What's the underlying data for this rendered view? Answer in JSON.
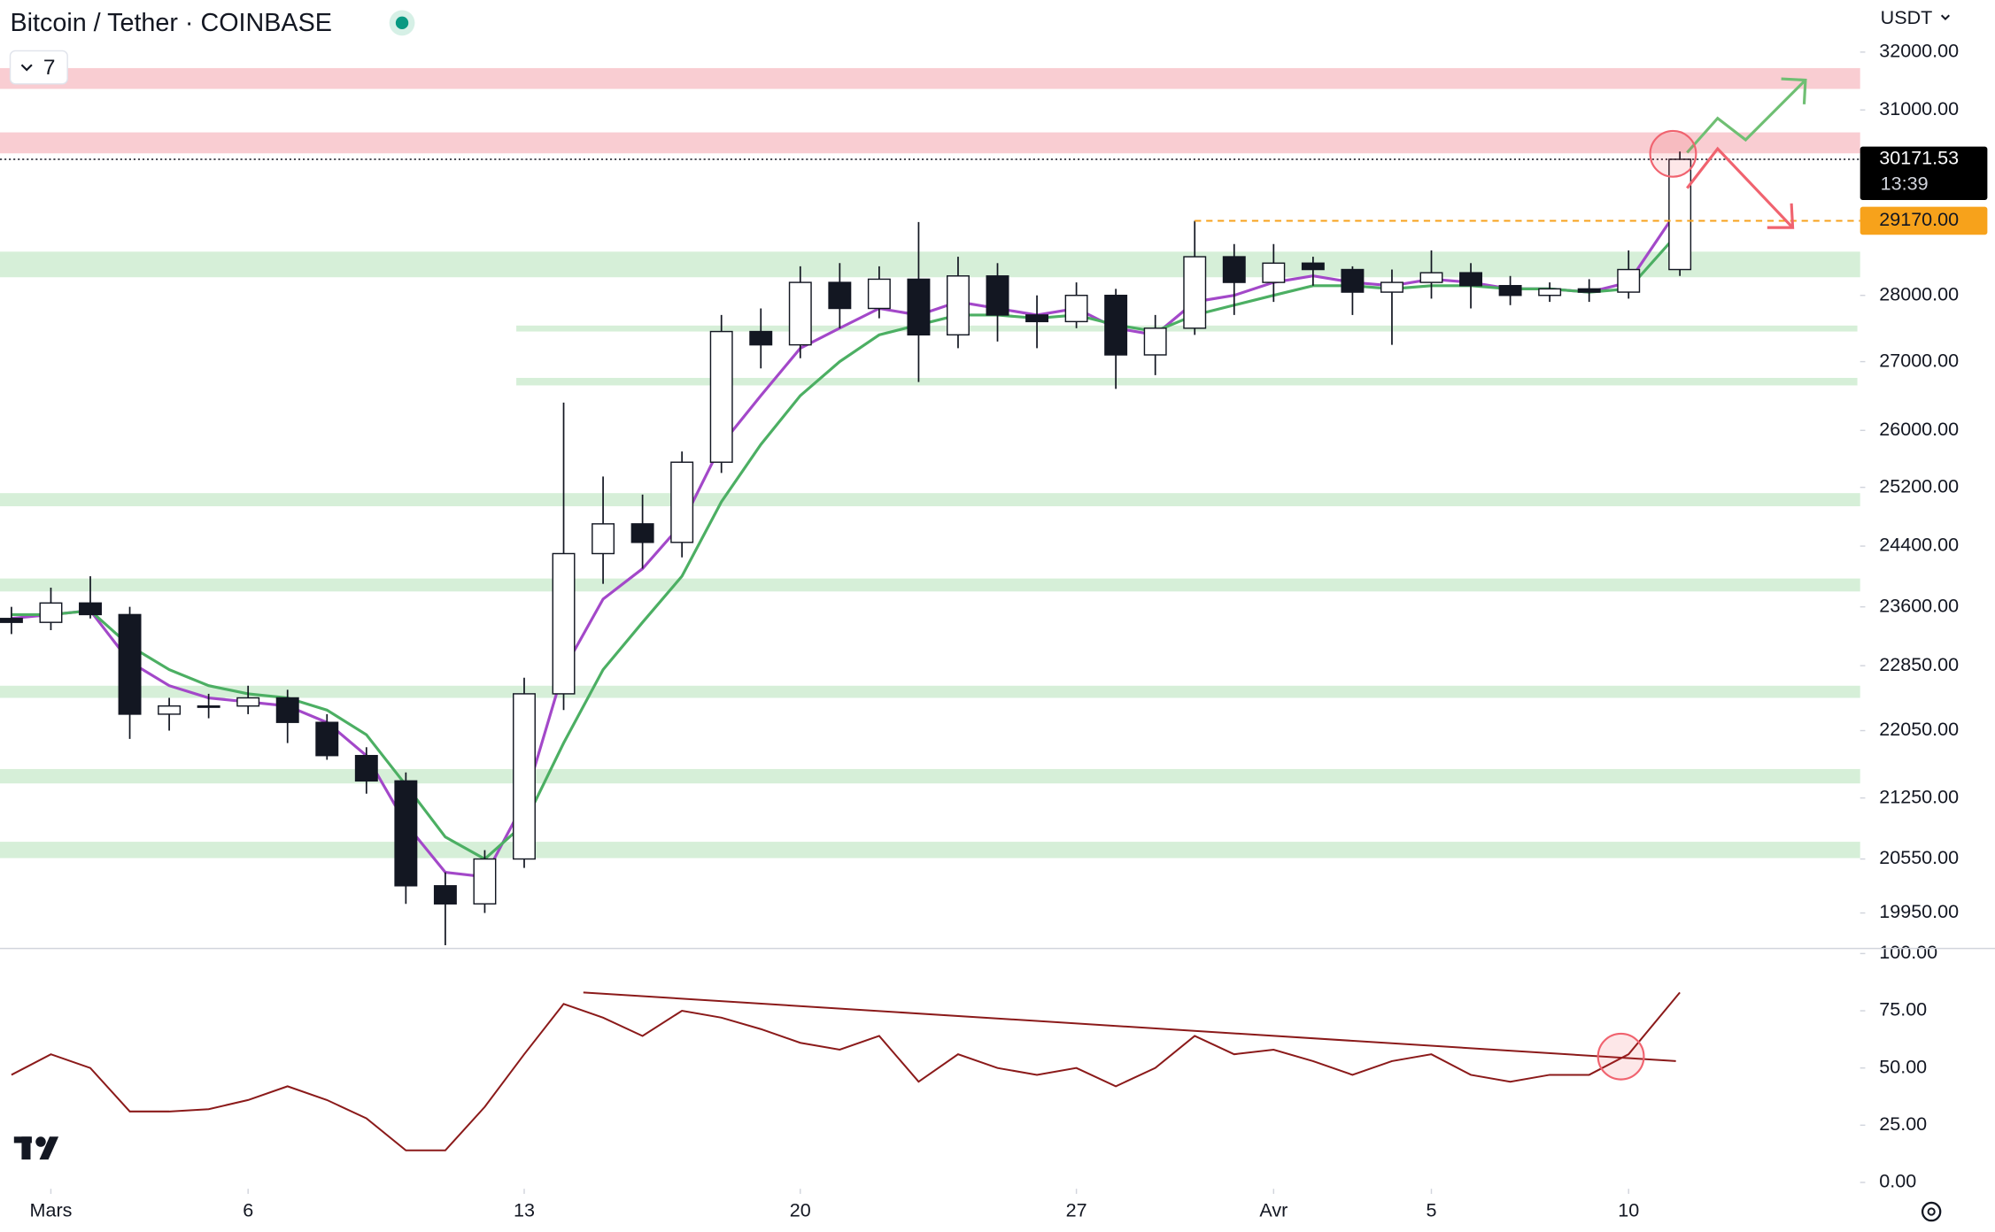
{
  "chart_data": {
    "type": "candlestick",
    "title": "Bitcoin / Tether · COINBASE",
    "badge": "7",
    "currency": "USDT",
    "candle_color": "#131722",
    "log_scale": true,
    "xlim": [
      -1.29,
      45.87
    ],
    "xticks": [
      {
        "value": 0,
        "label": "Mars"
      },
      {
        "value": 5,
        "label": "6"
      },
      {
        "value": 12,
        "label": "13"
      },
      {
        "value": 19,
        "label": "20"
      },
      {
        "value": 26,
        "label": "27"
      },
      {
        "value": 31,
        "label": "Avr"
      },
      {
        "value": 35,
        "label": "5"
      },
      {
        "value": 40,
        "label": "10"
      }
    ],
    "ylim": [
      19565,
      32928
    ],
    "yticks": [
      {
        "value": 32000,
        "label": "32000.00"
      },
      {
        "value": 31000,
        "label": "31000.00"
      },
      {
        "value": 28000,
        "label": "28000.00"
      },
      {
        "value": 27000,
        "label": "27000.00"
      },
      {
        "value": 26000,
        "label": "26000.00"
      },
      {
        "value": 25200,
        "label": "25200.00"
      },
      {
        "value": 24400,
        "label": "24400.00"
      },
      {
        "value": 23600,
        "label": "23600.00"
      },
      {
        "value": 22850,
        "label": "22850.00"
      },
      {
        "value": 22050,
        "label": "22050.00"
      },
      {
        "value": 21250,
        "label": "21250.00"
      },
      {
        "value": 20550,
        "label": "20550.00"
      },
      {
        "value": 19950,
        "label": "19950.00"
      }
    ],
    "x": [
      -1,
      0,
      1,
      2,
      3,
      4,
      5,
      6,
      7,
      8,
      9,
      10,
      11,
      12,
      13,
      14,
      15,
      16,
      17,
      18,
      19,
      20,
      21,
      22,
      23,
      24,
      25,
      26,
      27,
      28,
      29,
      30,
      31,
      32,
      33,
      34,
      35,
      36,
      37,
      38,
      39,
      40,
      41.3
    ],
    "open": [
      23450,
      23400,
      23650,
      23500,
      22250,
      22350,
      22350,
      22450,
      22150,
      21750,
      21450,
      20250,
      20050,
      20550,
      22500,
      24300,
      24700,
      24450,
      25550,
      27450,
      27250,
      28200,
      27800,
      28250,
      27400,
      28300,
      27700,
      27600,
      28000,
      27100,
      27500,
      28600,
      28200,
      28500,
      28400,
      28050,
      28200,
      28350,
      28150,
      28000,
      28100,
      28050,
      28400
    ],
    "high": [
      23600,
      23850,
      24000,
      23600,
      22450,
      22500,
      22600,
      22550,
      22250,
      21850,
      21550,
      20400,
      20650,
      22700,
      26400,
      25350,
      25100,
      25700,
      27700,
      27800,
      28450,
      28500,
      28450,
      29150,
      28600,
      28500,
      28000,
      28200,
      28100,
      27700,
      29170,
      28800,
      28800,
      28600,
      28450,
      28400,
      28700,
      28500,
      28300,
      28200,
      28250,
      28700,
      30300
    ],
    "low": [
      23250,
      23300,
      23450,
      21950,
      22050,
      22200,
      22250,
      21900,
      21700,
      21300,
      20050,
      19600,
      19950,
      20450,
      22300,
      23900,
      24100,
      24250,
      25400,
      26900,
      27050,
      27500,
      27650,
      26700,
      27200,
      27300,
      27200,
      27500,
      26600,
      26800,
      27400,
      27700,
      27900,
      28150,
      27700,
      27250,
      27950,
      27800,
      27850,
      27900,
      27900,
      27950,
      28300
    ],
    "close": [
      23400,
      23650,
      23500,
      22250,
      22350,
      22350,
      22450,
      22150,
      21750,
      21450,
      20250,
      20050,
      20550,
      22500,
      24300,
      24700,
      24450,
      25550,
      27450,
      27250,
      28200,
      27800,
      28250,
      27400,
      28300,
      27700,
      27600,
      28000,
      27100,
      27500,
      28600,
      28200,
      28500,
      28400,
      28050,
      28200,
      28350,
      28150,
      28000,
      28100,
      28050,
      28400,
      30171.53
    ],
    "series": [
      {
        "color": "#a348c9",
        "values": [
          23450,
          23500,
          23550,
          22900,
          22600,
          22450,
          22400,
          22350,
          22150,
          21750,
          20950,
          20400,
          20350,
          21200,
          22800,
          23700,
          24100,
          24700,
          25800,
          26500,
          27200,
          27500,
          27800,
          27700,
          27900,
          27800,
          27700,
          27800,
          27500,
          27400,
          27900,
          28000,
          28200,
          28300,
          28200,
          28150,
          28250,
          28200,
          28100,
          28100,
          28050,
          28200,
          29400
        ]
      },
      {
        "color": "#4caf63",
        "values": [
          23500,
          23500,
          23550,
          23100,
          22800,
          22600,
          22500,
          22450,
          22300,
          22000,
          21400,
          20800,
          20550,
          20950,
          21900,
          22800,
          23400,
          24000,
          25000,
          25800,
          26500,
          27000,
          27400,
          27550,
          27700,
          27700,
          27650,
          27700,
          27550,
          27450,
          27700,
          27850,
          28000,
          28150,
          28150,
          28100,
          28150,
          28150,
          28100,
          28100,
          28050,
          28100,
          29000
        ]
      }
    ],
    "zones": [
      {
        "range": [
          31360,
          31720
        ],
        "color": "#f9cdd2"
      },
      {
        "range": [
          30270,
          30620
        ],
        "color": "#f9cdd2"
      },
      {
        "range": [
          28280,
          28680
        ],
        "color": "#d6efd8"
      },
      {
        "range": [
          27450,
          27540
        ],
        "color": "#d6efd8",
        "x_range": [
          11.8,
          45.8
        ]
      },
      {
        "range": [
          26650,
          26760
        ],
        "color": "#d6efd8",
        "x_range": [
          11.8,
          45.8
        ]
      },
      {
        "range": [
          24940,
          25120
        ],
        "color": "#d6efd8"
      },
      {
        "range": [
          23800,
          23970
        ],
        "color": "#d6efd8"
      },
      {
        "range": [
          22450,
          22600
        ],
        "color": "#d6efd8"
      },
      {
        "range": [
          21420,
          21590
        ],
        "color": "#d6efd8"
      },
      {
        "range": [
          20560,
          20745
        ],
        "color": "#d6efd8"
      }
    ],
    "last_price": 30171.53,
    "countdown": "13:39",
    "level": {
      "value": 29170,
      "label": "29170.00",
      "x_start": 29,
      "color": "#f7a21b"
    },
    "rsi": {
      "type": "line",
      "color": "#8b1a1a",
      "ylim": [
        0,
        100
      ],
      "yticks": [
        {
          "value": 100,
          "label": "100.00"
        },
        {
          "value": 75,
          "label": "75.00"
        },
        {
          "value": 50,
          "label": "50.00"
        },
        {
          "value": 25,
          "label": "25.00"
        },
        {
          "value": 0,
          "label": "0.00"
        }
      ],
      "values": [
        47,
        56,
        50,
        31,
        31,
        32,
        36,
        42,
        36,
        28,
        14,
        14,
        33,
        56,
        78,
        72,
        64,
        75,
        72,
        67,
        61,
        58,
        64,
        44,
        56,
        50,
        47,
        50,
        42,
        50,
        64,
        56,
        58,
        53,
        47,
        53,
        56,
        47,
        44,
        47,
        47,
        56,
        83
      ],
      "trendline": {
        "x": [
          13.5,
          41.2
        ],
        "values": [
          83,
          53
        ]
      }
    }
  }
}
